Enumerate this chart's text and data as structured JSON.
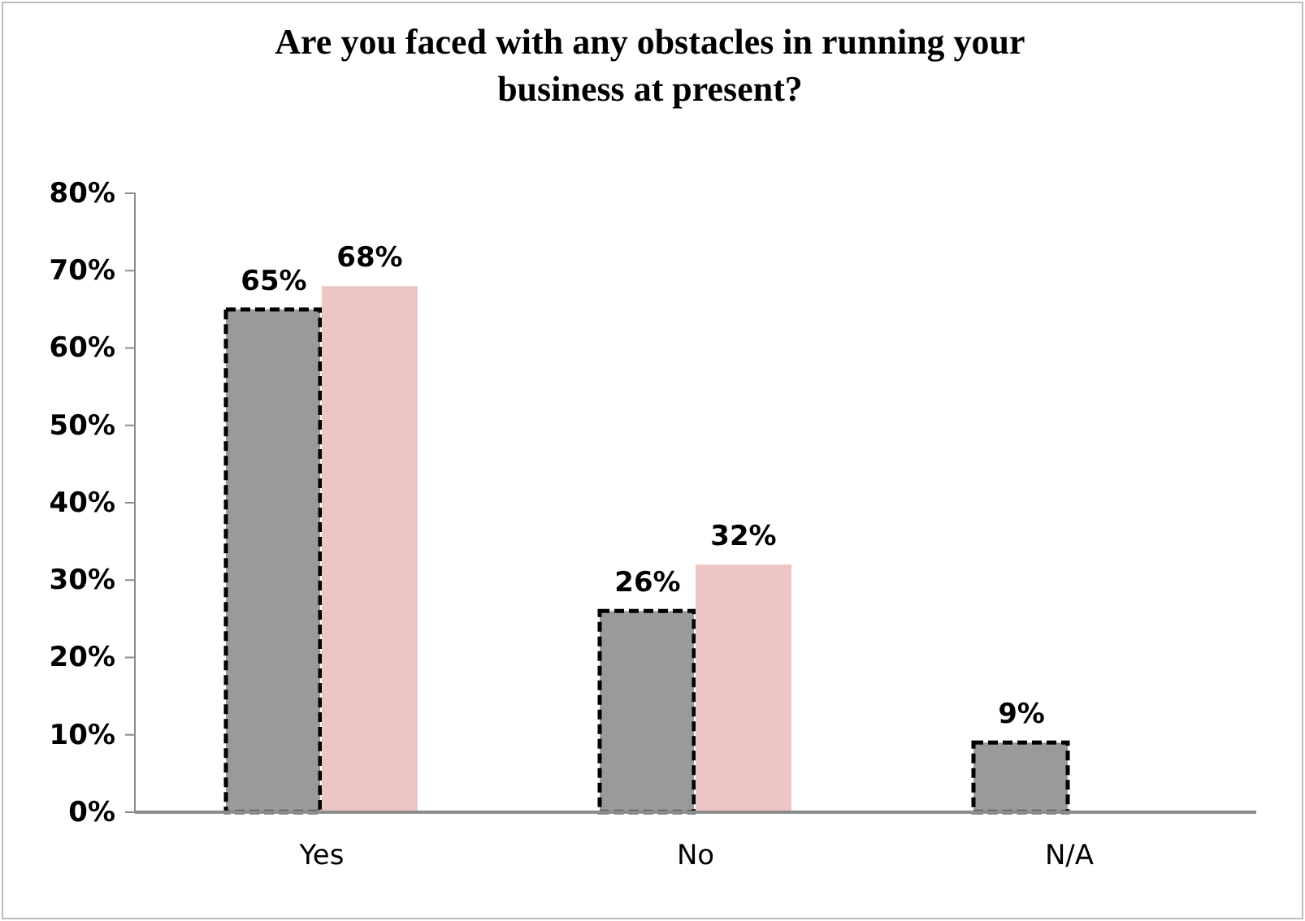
{
  "chart_data": {
    "type": "bar",
    "title": "Are you faced with any obstacles in running your business at present?",
    "categories": [
      "Yes",
      "No",
      "N/A"
    ],
    "series": [
      {
        "color": "#9a9a9a",
        "values": [
          65,
          26,
          9
        ],
        "value_labels": [
          "65%",
          "26%",
          "9%"
        ]
      },
      {
        "color": "#eec5c5",
        "values": [
          68,
          32,
          null
        ],
        "value_labels": [
          "68%",
          "32%",
          null
        ]
      }
    ],
    "ylim": [
      0,
      80
    ],
    "yticks": [
      {
        "value": 0,
        "label": "0%"
      },
      {
        "value": 10,
        "label": "10%"
      },
      {
        "value": 20,
        "label": "20%"
      },
      {
        "value": 30,
        "label": "30%"
      },
      {
        "value": 40,
        "label": "40%"
      },
      {
        "value": 50,
        "label": "50%"
      },
      {
        "value": 60,
        "label": "60%"
      },
      {
        "value": 70,
        "label": "70%"
      },
      {
        "value": 80,
        "label": "80%"
      }
    ],
    "grid": false
  }
}
